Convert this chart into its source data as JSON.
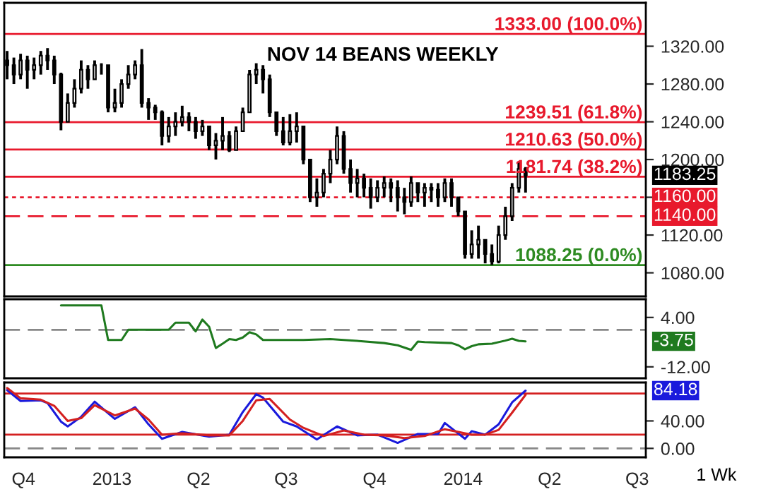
{
  "chart_data": [
    {
      "type": "candlestick",
      "title": "NOV 14 BEANS WEEKLY",
      "x": [
        "2012-09-14",
        "2012-09-21",
        "2012-09-28",
        "2012-10-05",
        "2012-10-12",
        "2012-10-19",
        "2012-10-26",
        "2012-11-02",
        "2012-11-09",
        "2012-11-16",
        "2012-11-23",
        "2012-11-30",
        "2012-12-07",
        "2012-12-14",
        "2012-12-21",
        "2012-12-28",
        "2013-01-04",
        "2013-01-11",
        "2013-01-18",
        "2013-01-25",
        "2013-02-01",
        "2013-02-08",
        "2013-02-15",
        "2013-02-22",
        "2013-03-01",
        "2013-03-08",
        "2013-03-15",
        "2013-03-22",
        "2013-03-29",
        "2013-04-05",
        "2013-04-12",
        "2013-04-19",
        "2013-04-26",
        "2013-05-03",
        "2013-05-10",
        "2013-05-17",
        "2013-05-24",
        "2013-05-31",
        "2013-06-07",
        "2013-06-14",
        "2013-06-21",
        "2013-06-28",
        "2013-07-05",
        "2013-07-12",
        "2013-07-19",
        "2013-07-26",
        "2013-08-02",
        "2013-08-09",
        "2013-08-16",
        "2013-08-23",
        "2013-08-30",
        "2013-09-06",
        "2013-09-13",
        "2013-09-20",
        "2013-09-27",
        "2013-10-04",
        "2013-10-11",
        "2013-10-18",
        "2013-10-25",
        "2013-11-01",
        "2013-11-08",
        "2013-11-15",
        "2013-11-22",
        "2013-11-29",
        "2013-12-06",
        "2013-12-13",
        "2013-12-20",
        "2013-12-27",
        "2014-01-03",
        "2014-01-10",
        "2014-01-17",
        "2014-01-24",
        "2014-01-31",
        "2014-02-07",
        "2014-02-14",
        "2014-02-21",
        "2014-02-28",
        "2014-03-07"
      ],
      "ohlc": [
        [
          1305,
          1315,
          1285,
          1300
        ],
        [
          1300,
          1308,
          1280,
          1290
        ],
        [
          1290,
          1312,
          1285,
          1305
        ],
        [
          1305,
          1310,
          1275,
          1295
        ],
        [
          1295,
          1308,
          1285,
          1300
        ],
        [
          1300,
          1315,
          1290,
          1310
        ],
        [
          1310,
          1318,
          1295,
          1305
        ],
        [
          1305,
          1310,
          1280,
          1290
        ],
        [
          1290,
          1292,
          1231,
          1240
        ],
        [
          1240,
          1270,
          1240,
          1260
        ],
        [
          1260,
          1285,
          1255,
          1275
        ],
        [
          1275,
          1305,
          1270,
          1295
        ],
        [
          1295,
          1300,
          1275,
          1285
        ],
        [
          1285,
          1305,
          1285,
          1300
        ],
        [
          1300,
          1302,
          1290,
          1300
        ],
        [
          1300,
          1300,
          1250,
          1255
        ],
        [
          1255,
          1275,
          1250,
          1260
        ],
        [
          1260,
          1285,
          1255,
          1280
        ],
        [
          1280,
          1300,
          1275,
          1290
        ],
        [
          1290,
          1305,
          1285,
          1300
        ],
        [
          1300,
          1317,
          1255,
          1260
        ],
        [
          1260,
          1265,
          1242,
          1255
        ],
        [
          1255,
          1258,
          1242,
          1250
        ],
        [
          1250,
          1252,
          1215,
          1225
        ],
        [
          1225,
          1245,
          1218,
          1235
        ],
        [
          1235,
          1250,
          1225,
          1240
        ],
        [
          1240,
          1257,
          1235,
          1245
        ],
        [
          1245,
          1250,
          1230,
          1240
        ],
        [
          1240,
          1245,
          1222,
          1230
        ],
        [
          1230,
          1242,
          1225,
          1235
        ],
        [
          1235,
          1235,
          1210,
          1215
        ],
        [
          1215,
          1228,
          1200,
          1220
        ],
        [
          1220,
          1245,
          1210,
          1225
        ],
        [
          1225,
          1230,
          1208,
          1210
        ],
        [
          1210,
          1235,
          1210,
          1230
        ],
        [
          1230,
          1255,
          1230,
          1250
        ],
        [
          1250,
          1295,
          1250,
          1290
        ],
        [
          1290,
          1302,
          1280,
          1295
        ],
        [
          1295,
          1300,
          1270,
          1285
        ],
        [
          1285,
          1290,
          1245,
          1250
        ],
        [
          1250,
          1250,
          1225,
          1230
        ],
        [
          1230,
          1245,
          1215,
          1218
        ],
        [
          1218,
          1248,
          1215,
          1230
        ],
        [
          1230,
          1250,
          1218,
          1235
        ],
        [
          1235,
          1235,
          1195,
          1200
        ],
        [
          1200,
          1200,
          1155,
          1160
        ],
        [
          1160,
          1180,
          1150,
          1165
        ],
        [
          1165,
          1190,
          1160,
          1185
        ],
        [
          1185,
          1210,
          1175,
          1200
        ],
        [
          1200,
          1235,
          1195,
          1225
        ],
        [
          1225,
          1230,
          1185,
          1190
        ],
        [
          1190,
          1200,
          1165,
          1175
        ],
        [
          1175,
          1190,
          1160,
          1180
        ],
        [
          1180,
          1185,
          1160,
          1170
        ],
        [
          1170,
          1180,
          1148,
          1160
        ],
        [
          1160,
          1178,
          1155,
          1170
        ],
        [
          1170,
          1182,
          1160,
          1175
        ],
        [
          1175,
          1180,
          1155,
          1170
        ],
        [
          1170,
          1178,
          1145,
          1160
        ],
        [
          1160,
          1170,
          1142,
          1155
        ],
        [
          1155,
          1182,
          1150,
          1175
        ],
        [
          1175,
          1175,
          1155,
          1165
        ],
        [
          1165,
          1175,
          1150,
          1170
        ],
        [
          1170,
          1175,
          1155,
          1168
        ],
        [
          1168,
          1175,
          1150,
          1160
        ],
        [
          1160,
          1180,
          1155,
          1175
        ],
        [
          1175,
          1180,
          1150,
          1160
        ],
        [
          1160,
          1160,
          1140,
          1145
        ],
        [
          1145,
          1145,
          1095,
          1100
        ],
        [
          1100,
          1125,
          1095,
          1110
        ],
        [
          1110,
          1130,
          1095,
          1115
        ],
        [
          1115,
          1115,
          1090,
          1100
        ],
        [
          1100,
          1110,
          1088.25,
          1092
        ],
        [
          1092,
          1130,
          1090,
          1120
        ],
        [
          1120,
          1150,
          1115,
          1140
        ],
        [
          1140,
          1175,
          1135,
          1170
        ],
        [
          1170,
          1198,
          1165,
          1190
        ],
        [
          1190,
          1192,
          1165,
          1183.25
        ]
      ],
      "xlim": [
        "2012-09-11",
        "2014-07-10"
      ],
      "ylim": [
        1055,
        1366
      ],
      "yticks": [
        {
          "value": 1080,
          "label": "1080.00"
        },
        {
          "value": 1120,
          "label": "1120.00"
        },
        {
          "value": 1160,
          "label": null
        },
        {
          "value": 1200,
          "label": "1200.00"
        },
        {
          "value": 1240,
          "label": "1240.00"
        },
        {
          "value": 1280,
          "label": "1280.00"
        },
        {
          "value": 1320,
          "label": "1320.00"
        }
      ],
      "tick_labels": "y",
      "ref_lines": [
        {
          "axis": "y",
          "value": 1333,
          "label": "1333.00 (100.0%)",
          "color": "#e8192c",
          "line_style": "solid"
        },
        {
          "axis": "y",
          "value": 1239.51,
          "label": "1239.51 (61.8%)",
          "color": "#e8192c",
          "line_style": "solid"
        },
        {
          "axis": "y",
          "value": 1210.63,
          "label": "1210.63 (50.0%)",
          "color": "#e8192c",
          "line_style": "solid"
        },
        {
          "axis": "y",
          "value": 1181.74,
          "label": "1181.74 (38.2%)",
          "color": "#e8192c",
          "line_style": "solid"
        },
        {
          "axis": "y",
          "value": 1088.25,
          "label": "1088.25 (0.0%)",
          "color": "#2e8b22",
          "line_style": "solid"
        },
        {
          "axis": "y",
          "value": 1160,
          "label": "1160.00",
          "color": "#e8192c",
          "line_style": "dotted"
        },
        {
          "axis": "y",
          "value": 1140,
          "label": "1140.00",
          "color": "#e8192c",
          "line_style": "dashed"
        }
      ],
      "annotations": [
        "1183.25"
      ]
    },
    {
      "type": "line",
      "series": [
        {
          "color": "#1f7a1f",
          "x": [
            "2012-11-09",
            "2012-12-21",
            "2012-12-28",
            "2013-01-11",
            "2013-01-18",
            "2013-03-01",
            "2013-03-08",
            "2013-03-22",
            "2013-03-29",
            "2013-04-05",
            "2013-04-12",
            "2013-04-19",
            "2013-04-26",
            "2013-05-03",
            "2013-05-10",
            "2013-05-17",
            "2013-05-24",
            "2013-05-31",
            "2013-06-07",
            "2013-06-21",
            "2013-07-19",
            "2013-08-16",
            "2013-09-13",
            "2013-10-11",
            "2013-10-25",
            "2013-11-08",
            "2013-11-15",
            "2013-11-22",
            "2013-12-20",
            "2013-12-27",
            "2014-01-03",
            "2014-01-10",
            "2014-01-17",
            "2014-01-31",
            "2014-02-14",
            "2014-02-21",
            "2014-02-28",
            "2014-03-07"
          ],
          "values": [
            7.9,
            7.9,
            -3.3,
            -3.3,
            0,
            0,
            2.3,
            2.3,
            -0.5,
            3.3,
            1.0,
            -5.9,
            -4.5,
            -3.0,
            -3.3,
            -2.5,
            -0.8,
            -1.5,
            -3.3,
            -3.3,
            -3.3,
            -3.0,
            -3.6,
            -4.3,
            -5.0,
            -6.5,
            -3.8,
            -4.0,
            -4.3,
            -5.0,
            -6.3,
            -5.3,
            -4.7,
            -4.5,
            -3.5,
            -2.9,
            -3.6,
            -3.75
          ]
        }
      ],
      "xlim": [
        "2012-09-11",
        "2014-07-10"
      ],
      "ylim": [
        -15.7,
        9.9
      ],
      "yticks": [
        {
          "value": 4,
          "label": "4.00"
        },
        {
          "value": -12,
          "label": "-12.00"
        }
      ],
      "tick_labels": "y",
      "ref_lines": [
        {
          "axis": "y",
          "value": 0,
          "color": "#888888",
          "line_style": "dashed"
        }
      ],
      "annotations": [
        "-3.75"
      ]
    },
    {
      "type": "line",
      "series": [
        {
          "color": "#1a1adc",
          "x": [
            "2012-09-14",
            "2012-09-28",
            "2012-10-19",
            "2012-10-26",
            "2012-11-09",
            "2012-11-16",
            "2012-11-30",
            "2012-12-14",
            "2013-01-04",
            "2013-01-25",
            "2013-02-08",
            "2013-02-22",
            "2013-03-15",
            "2013-04-12",
            "2013-05-03",
            "2013-05-17",
            "2013-05-31",
            "2013-06-07",
            "2013-06-28",
            "2013-07-12",
            "2013-08-02",
            "2013-08-23",
            "2013-09-13",
            "2013-10-04",
            "2013-10-25",
            "2013-11-15",
            "2013-12-06",
            "2013-12-13",
            "2014-01-03",
            "2014-01-10",
            "2014-01-24",
            "2014-02-07",
            "2014-02-21",
            "2014-03-07"
          ],
          "values": [
            85,
            69,
            70,
            66,
            39,
            32,
            46,
            68,
            43,
            60,
            35,
            14,
            24,
            17,
            20,
            53,
            79,
            74,
            39,
            32,
            13,
            32,
            19,
            20,
            8,
            21,
            21,
            37,
            14,
            25,
            20,
            35,
            67,
            84.18
          ]
        },
        {
          "color": "#d42020",
          "x": [
            "2012-09-14",
            "2012-09-28",
            "2012-10-19",
            "2012-11-02",
            "2012-11-16",
            "2012-11-30",
            "2012-12-14",
            "2013-01-04",
            "2013-01-25",
            "2013-02-08",
            "2013-02-22",
            "2013-03-15",
            "2013-04-12",
            "2013-05-03",
            "2013-05-17",
            "2013-05-31",
            "2013-06-14",
            "2013-07-05",
            "2013-07-19",
            "2013-08-09",
            "2013-08-30",
            "2013-09-20",
            "2013-10-11",
            "2013-11-01",
            "2013-11-22",
            "2013-12-13",
            "2013-12-27",
            "2014-01-10",
            "2014-01-24",
            "2014-02-07",
            "2014-02-21",
            "2014-03-07"
          ],
          "values": [
            88,
            73,
            71,
            62,
            40,
            44,
            63,
            48,
            58,
            42,
            20,
            22,
            19,
            19,
            40,
            70,
            72,
            42,
            30,
            18,
            26,
            20,
            19,
            15,
            18,
            28,
            24,
            20,
            20,
            27,
            52,
            78
          ]
        }
      ],
      "xlim": [
        "2012-09-11",
        "2014-07-10"
      ],
      "ylim": [
        -13,
        96
      ],
      "xticks": [
        {
          "value": "2012-10-01",
          "label": "Q4"
        },
        {
          "value": "2013-01-01",
          "label": "2013"
        },
        {
          "value": "2013-04-01",
          "label": "Q2"
        },
        {
          "value": "2013-07-01",
          "label": "Q3"
        },
        {
          "value": "2013-10-01",
          "label": "Q4"
        },
        {
          "value": "2014-01-01",
          "label": "2014"
        },
        {
          "value": "2014-04-01",
          "label": "Q2"
        },
        {
          "value": "2014-07-01",
          "label": "Q3"
        }
      ],
      "yticks": [
        {
          "value": 0,
          "label": "0.00"
        },
        {
          "value": 40,
          "label": "40.00"
        }
      ],
      "ref_lines": [
        {
          "axis": "y",
          "value": 80,
          "color": "#d42020",
          "line_style": "solid"
        },
        {
          "axis": "y",
          "value": 20,
          "color": "#d42020",
          "line_style": "solid"
        },
        {
          "axis": "y",
          "value": 0,
          "color": "#888888",
          "line_style": "dashed"
        }
      ],
      "annotations": [
        "84.18",
        "1 Wk"
      ]
    }
  ]
}
